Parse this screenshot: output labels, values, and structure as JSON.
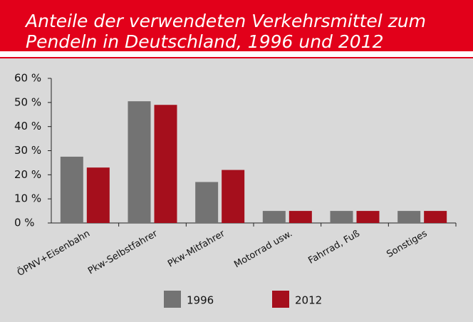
{
  "chart_data": {
    "type": "bar",
    "title": [
      "Anteile der verwendeten Verkehrsmittel zum",
      "Pendeln in Deutschland, 1996 und 2012"
    ],
    "categories": [
      "ÖPNV+Eisenbahn",
      "Pkw-Selbstfahrer",
      "Pkw-Mitfahrer",
      "Motorrad usw.",
      "Fahrrad, Fuß",
      "Sonstiges"
    ],
    "series": [
      {
        "name": "1996",
        "color": "#737373",
        "values": [
          27.5,
          50.5,
          17,
          5,
          5,
          5
        ]
      },
      {
        "name": "2012",
        "color": "#a50f1c",
        "values": [
          23,
          49,
          22,
          5,
          5,
          5
        ]
      }
    ],
    "ylim": [
      0,
      60
    ],
    "yticks": [
      {
        "value": 0,
        "label": "0 %"
      },
      {
        "value": 10,
        "label": "10 %"
      },
      {
        "value": 20,
        "label": "20 %"
      },
      {
        "value": 30,
        "label": "30 %"
      },
      {
        "value": 40,
        "label": "40 %"
      },
      {
        "value": 50,
        "label": "50 %"
      },
      {
        "value": 60,
        "label": "60 %"
      }
    ],
    "grid": false
  }
}
